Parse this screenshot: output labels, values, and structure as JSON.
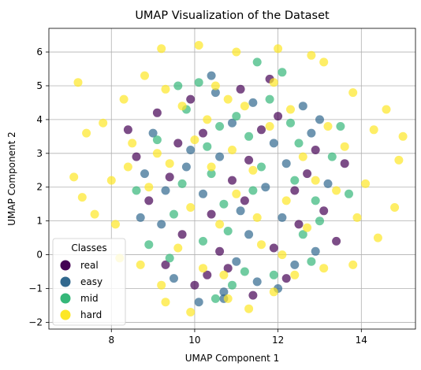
{
  "chart_data": {
    "type": "scatter",
    "title": "UMAP Visualization of the Dataset",
    "xlabel": "UMAP Component 1",
    "ylabel": "UMAP Component 2",
    "xlim": [
      6.5,
      15.3
    ],
    "ylim": [
      -2.2,
      6.7
    ],
    "xticks": [
      8,
      10,
      12,
      14
    ],
    "yticks": [
      -2,
      -1,
      0,
      1,
      2,
      3,
      4,
      5,
      6
    ],
    "grid": true,
    "legend": {
      "title": "Classes",
      "position": "lower-left"
    },
    "series": [
      {
        "name": "real",
        "color": "#440154",
        "points": [
          [
            9.1,
            4.2
          ],
          [
            10.2,
            3.6
          ],
          [
            11.3,
            2.8
          ],
          [
            12.4,
            1.9
          ],
          [
            9.7,
            0.6
          ],
          [
            10.8,
            -0.4
          ],
          [
            11.9,
            0.2
          ],
          [
            12.9,
            3.1
          ],
          [
            9.4,
            2.3
          ],
          [
            11.1,
            4.9
          ],
          [
            10.4,
            1.2
          ],
          [
            12.2,
            -0.7
          ],
          [
            8.9,
            1.6
          ],
          [
            11.6,
            3.7
          ],
          [
            10.0,
            -0.9
          ],
          [
            13.1,
            1.3
          ],
          [
            9.9,
            4.6
          ],
          [
            12.7,
            2.4
          ],
          [
            10.6,
            0.1
          ],
          [
            11.4,
            -1.2
          ],
          [
            8.6,
            2.9
          ],
          [
            12.0,
            4.1
          ],
          [
            9.3,
            -0.3
          ],
          [
            13.4,
            0.4
          ],
          [
            10.9,
            2.2
          ],
          [
            11.8,
            5.2
          ],
          [
            9.6,
            3.3
          ],
          [
            12.5,
            0.9
          ],
          [
            10.3,
            -0.6
          ],
          [
            11.2,
            1.6
          ],
          [
            8.4,
            3.7
          ],
          [
            13.6,
            2.7
          ]
        ]
      },
      {
        "name": "easy",
        "color": "#31688e",
        "points": [
          [
            9.8,
            2.6
          ],
          [
            10.9,
            3.9
          ],
          [
            12.1,
            1.1
          ],
          [
            11.0,
            -0.2
          ],
          [
            9.2,
            0.9
          ],
          [
            12.8,
            3.6
          ],
          [
            10.5,
            4.8
          ],
          [
            11.7,
            2.0
          ],
          [
            9.5,
            -0.7
          ],
          [
            12.4,
            -0.3
          ],
          [
            10.2,
            1.8
          ],
          [
            13.2,
            2.1
          ],
          [
            8.8,
            2.4
          ],
          [
            11.3,
            0.6
          ],
          [
            10.7,
            -1.1
          ],
          [
            12.6,
            4.4
          ],
          [
            9.9,
            3.1
          ],
          [
            11.9,
            3.3
          ],
          [
            10.1,
            -1.4
          ],
          [
            12.9,
            0.1
          ],
          [
            9.0,
            3.6
          ],
          [
            11.5,
            -0.8
          ],
          [
            10.6,
            2.9
          ],
          [
            12.2,
            2.7
          ],
          [
            8.7,
            1.1
          ],
          [
            13.0,
            4.0
          ],
          [
            11.1,
            1.3
          ],
          [
            10.4,
            5.3
          ],
          [
            9.3,
            1.9
          ],
          [
            12.0,
            -1.0
          ],
          [
            10.7,
            -1.3
          ],
          [
            11.4,
            4.5
          ]
        ]
      },
      {
        "name": "mid",
        "color": "#35b779",
        "points": [
          [
            10.3,
            3.2
          ],
          [
            11.4,
            1.9
          ],
          [
            12.3,
            3.9
          ],
          [
            9.7,
            2.1
          ],
          [
            10.8,
            0.7
          ],
          [
            11.8,
            4.6
          ],
          [
            12.9,
            1.6
          ],
          [
            9.1,
            3.4
          ],
          [
            10.1,
            5.1
          ],
          [
            11.2,
            -0.5
          ],
          [
            12.6,
            0.6
          ],
          [
            9.5,
            1.2
          ],
          [
            10.6,
            3.8
          ],
          [
            11.6,
            2.6
          ],
          [
            13.3,
            2.9
          ],
          [
            8.9,
            0.3
          ],
          [
            10.9,
            -0.9
          ],
          [
            12.1,
            5.4
          ],
          [
            9.8,
            4.3
          ],
          [
            11.3,
            3.5
          ],
          [
            12.8,
            -0.2
          ],
          [
            10.4,
            2.4
          ],
          [
            13.5,
            3.8
          ],
          [
            9.4,
            -0.1
          ],
          [
            11.0,
            4.1
          ],
          [
            12.4,
            2.2
          ],
          [
            10.2,
            0.4
          ],
          [
            11.9,
            -0.6
          ],
          [
            8.6,
            1.9
          ],
          [
            13.0,
            1.0
          ],
          [
            10.7,
            1.5
          ],
          [
            11.5,
            5.7
          ],
          [
            12.5,
            3.3
          ],
          [
            9.6,
            5.0
          ],
          [
            10.5,
            -1.3
          ],
          [
            13.7,
            1.8
          ]
        ]
      },
      {
        "name": "hard",
        "color": "#fde725",
        "points": [
          [
            7.2,
            5.1
          ],
          [
            8.3,
            4.6
          ],
          [
            7.8,
            3.9
          ],
          [
            7.4,
            3.6
          ],
          [
            7.1,
            2.3
          ],
          [
            7.3,
            1.7
          ],
          [
            7.6,
            1.2
          ],
          [
            8.1,
            0.9
          ],
          [
            8.2,
            -0.1
          ],
          [
            8.7,
            -0.3
          ],
          [
            9.2,
            -0.9
          ],
          [
            9.3,
            -1.4
          ],
          [
            9.9,
            -1.7
          ],
          [
            10.8,
            -1.3
          ],
          [
            11.3,
            -1.6
          ],
          [
            11.9,
            -1.1
          ],
          [
            12.4,
            -0.6
          ],
          [
            13.1,
            -0.4
          ],
          [
            13.8,
            -0.3
          ],
          [
            14.4,
            0.5
          ],
          [
            14.8,
            1.4
          ],
          [
            14.9,
            2.8
          ],
          [
            15.0,
            3.5
          ],
          [
            14.6,
            4.3
          ],
          [
            13.8,
            4.8
          ],
          [
            13.1,
            5.7
          ],
          [
            12.8,
            5.9
          ],
          [
            12.0,
            6.1
          ],
          [
            11.0,
            6.0
          ],
          [
            10.1,
            6.2
          ],
          [
            9.2,
            6.1
          ],
          [
            8.8,
            5.3
          ],
          [
            9.7,
            4.4
          ],
          [
            10.4,
            2.6
          ],
          [
            10.9,
            3.1
          ],
          [
            11.5,
            1.1
          ],
          [
            12.2,
            1.6
          ],
          [
            11.8,
            3.8
          ],
          [
            10.6,
            0.9
          ],
          [
            9.9,
            1.4
          ],
          [
            12.6,
            2.9
          ],
          [
            9.4,
            2.7
          ],
          [
            11.2,
            4.4
          ],
          [
            10.3,
            4.0
          ],
          [
            12.9,
            2.2
          ],
          [
            8.9,
            2.0
          ],
          [
            11.6,
            0.3
          ],
          [
            10.0,
            3.4
          ],
          [
            12.3,
            4.3
          ],
          [
            9.1,
            3.0
          ],
          [
            13.4,
            1.9
          ],
          [
            10.7,
            -0.6
          ],
          [
            8.5,
            3.3
          ],
          [
            11.4,
            2.5
          ],
          [
            12.7,
            0.8
          ],
          [
            9.6,
            0.2
          ],
          [
            13.6,
            3.2
          ],
          [
            10.5,
            5.0
          ],
          [
            8.4,
            2.6
          ],
          [
            11.9,
            5.1
          ],
          [
            13.2,
            3.8
          ],
          [
            9.3,
            4.9
          ],
          [
            10.2,
            -0.4
          ],
          [
            12.1,
            0.0
          ],
          [
            14.1,
            2.1
          ],
          [
            11.0,
            1.8
          ],
          [
            14.3,
            3.7
          ],
          [
            8.0,
            2.2
          ],
          [
            13.9,
            1.1
          ],
          [
            10.8,
            4.6
          ]
        ]
      }
    ]
  }
}
